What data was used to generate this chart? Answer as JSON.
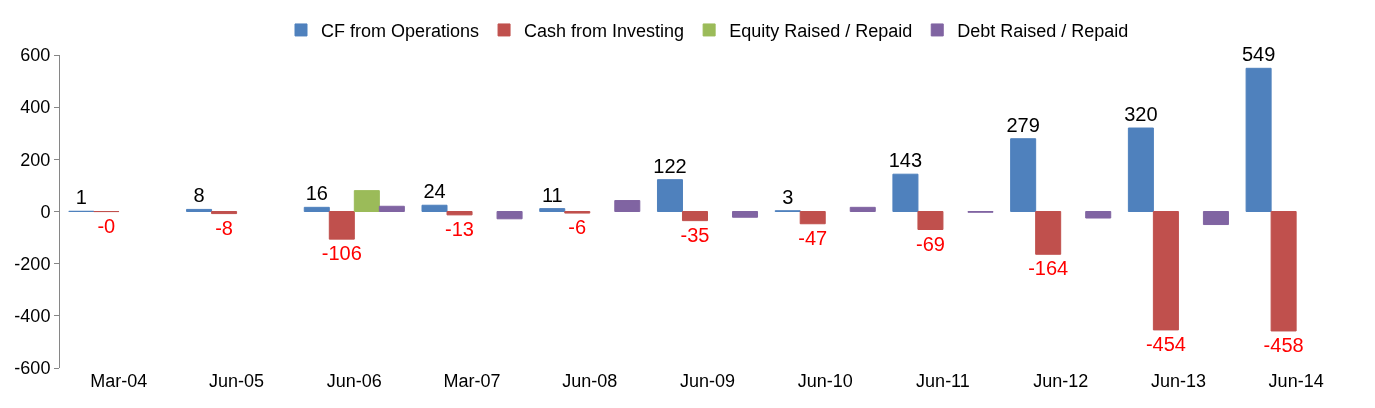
{
  "chart_data": {
    "type": "bar",
    "categories": [
      "Mar-04",
      "Jun-05",
      "Jun-06",
      "Mar-07",
      "Jun-08",
      "Jun-09",
      "Jun-10",
      "Jun-11",
      "Jun-12",
      "Jun-13",
      "Jun-14"
    ],
    "series": [
      {
        "name": "CF from Operations",
        "color": "#4f81bd",
        "values": [
          1,
          8,
          16,
          24,
          11,
          122,
          3,
          143,
          279,
          320,
          549
        ],
        "value_labels": [
          "1",
          "8",
          "16",
          "24",
          "11",
          "122",
          "3",
          "143",
          "279",
          "320",
          "549"
        ]
      },
      {
        "name": "Cash from Investing",
        "color": "#c0504d",
        "values": [
          -0.4,
          -8,
          -106,
          -13,
          -6,
          -35,
          -47,
          -69,
          -164,
          -454,
          -458
        ],
        "value_labels": [
          "-0",
          "-8",
          "-106",
          "-13",
          "-6",
          "-35",
          "-47",
          "-69",
          "-164",
          "-454",
          "-458"
        ]
      },
      {
        "name": "Equity Raised / Repaid",
        "color": "#9bbb59",
        "values": [
          null,
          null,
          80,
          null,
          null,
          null,
          null,
          null,
          null,
          null,
          null
        ]
      },
      {
        "name": "Debt Raised / Repaid",
        "color": "#8064a2",
        "values": [
          null,
          null,
          20,
          -28,
          42,
          -22,
          16,
          -3,
          -25,
          -50,
          null
        ]
      }
    ],
    "ylim": [
      -600,
      600
    ],
    "yticks": [
      -600,
      -400,
      -200,
      0,
      200,
      400,
      600
    ],
    "grid": false,
    "legend": "top"
  }
}
